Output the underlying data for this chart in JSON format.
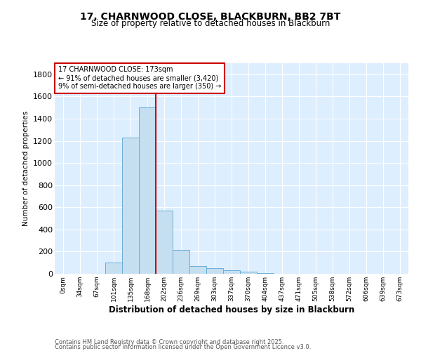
{
  "title": "17, CHARNWOOD CLOSE, BLACKBURN, BB2 7BT",
  "subtitle": "Size of property relative to detached houses in Blackburn",
  "xlabel": "Distribution of detached houses by size in Blackburn",
  "ylabel": "Number of detached properties",
  "footnote1": "Contains HM Land Registry data © Crown copyright and database right 2025.",
  "footnote2": "Contains public sector information licensed under the Open Government Licence v3.0.",
  "annotation_title": "17 CHARNWOOD CLOSE: 173sqm",
  "annotation_line1": "← 91% of detached houses are smaller (3,420)",
  "annotation_line2": "9% of semi-detached houses are larger (350) →",
  "bar_color": "#c5dff0",
  "bar_edge_color": "#6aaed6",
  "vline_color": "#cc0000",
  "vline_x_index": 5,
  "categories": [
    "0sqm",
    "34sqm",
    "67sqm",
    "101sqm",
    "135sqm",
    "168sqm",
    "202sqm",
    "236sqm",
    "269sqm",
    "303sqm",
    "337sqm",
    "370sqm",
    "404sqm",
    "437sqm",
    "471sqm",
    "505sqm",
    "538sqm",
    "572sqm",
    "606sqm",
    "639sqm",
    "673sqm"
  ],
  "values": [
    0,
    0,
    0,
    100,
    1230,
    1500,
    570,
    215,
    70,
    50,
    30,
    20,
    5,
    2,
    1,
    0,
    0,
    0,
    0,
    0,
    0
  ],
  "ylim": [
    0,
    1900
  ],
  "yticks": [
    0,
    200,
    400,
    600,
    800,
    1000,
    1200,
    1400,
    1600,
    1800
  ],
  "background_color": "#ffffff",
  "plot_bg_color": "#ddeeff",
  "grid_color": "#ffffff"
}
